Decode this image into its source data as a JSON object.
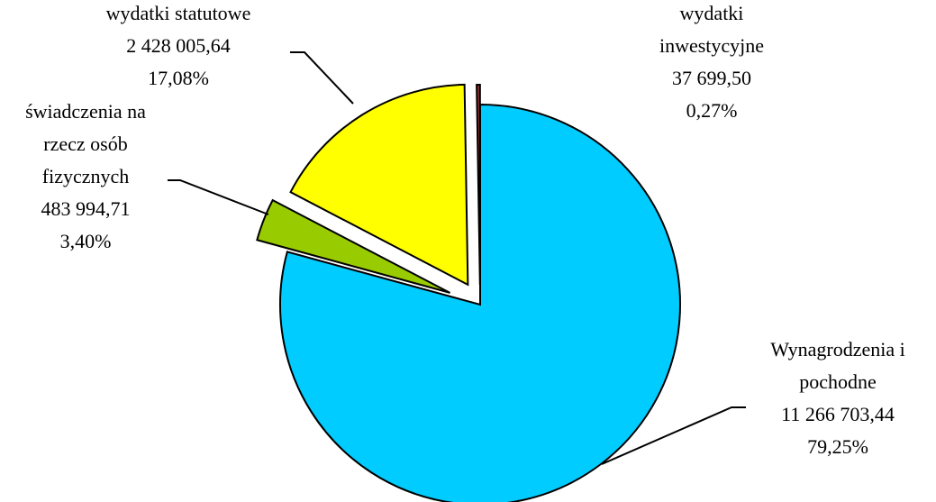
{
  "chart_data": {
    "type": "pie",
    "title": "",
    "start_angle_deg": 0,
    "direction": "clockwise",
    "exploded": true,
    "slices": [
      {
        "name": "Wynagrodzenia i pochodne",
        "name_lines": [
          "Wynagrodzenia i",
          "pochodne"
        ],
        "value": 11266703.44,
        "value_label": "11 266 703,44",
        "percent": 79.25,
        "percent_label": "79,25%",
        "color": "#00ccff"
      },
      {
        "name": "świadczenia na rzecz osób fizycznych",
        "name_lines": [
          "świadczenia na",
          "rzecz osób",
          "fizycznych"
        ],
        "value": 483994.71,
        "value_label": "483 994,71",
        "percent": 3.4,
        "percent_label": "3,40%",
        "color": "#99cc00"
      },
      {
        "name": "wydatki statutowe",
        "name_lines": [
          "wydatki statutowe"
        ],
        "value": 2428005.64,
        "value_label": "2 428 005,64",
        "percent": 17.08,
        "percent_label": "17,08%",
        "color": "#ffff00"
      },
      {
        "name": "wydatki inwestycyjne",
        "name_lines": [
          "wydatki",
          "inwestycyjne"
        ],
        "value": 37699.5,
        "value_label": "37 699,50",
        "percent": 0.27,
        "percent_label": "0,27%",
        "color": "#993333"
      }
    ]
  }
}
